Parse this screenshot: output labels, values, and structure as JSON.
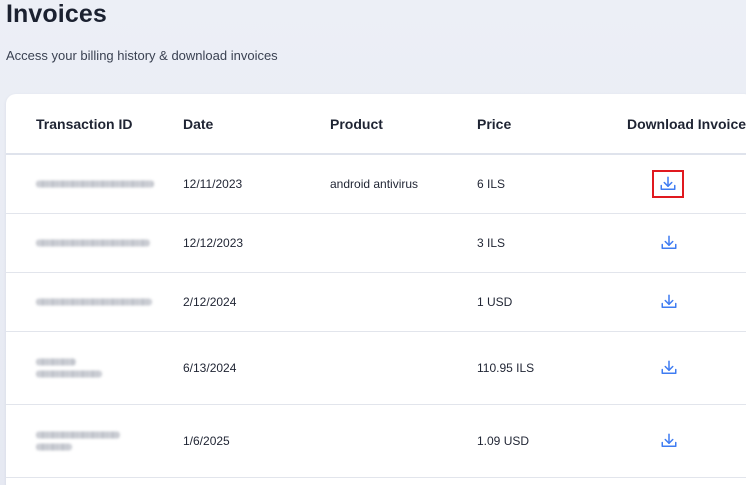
{
  "page": {
    "title": "Invoices",
    "subtitle": "Access your billing history & download invoices"
  },
  "table": {
    "headers": {
      "transaction_id": "Transaction ID",
      "date": "Date",
      "product": "Product",
      "price": "Price",
      "download": "Download Invoice"
    },
    "rows": [
      {
        "transaction_id_redacted": true,
        "date": "12/11/2023",
        "product": "android antivirus",
        "price": "6 ILS",
        "download_icon": "download-icon",
        "highlighted": true
      },
      {
        "transaction_id_redacted": true,
        "date": "12/12/2023",
        "product": "",
        "price": "3 ILS",
        "download_icon": "download-icon",
        "highlighted": false
      },
      {
        "transaction_id_redacted": true,
        "date": "2/12/2024",
        "product": "",
        "price": "1 USD",
        "download_icon": "download-icon",
        "highlighted": false
      },
      {
        "transaction_id_redacted": true,
        "date": "6/13/2024",
        "product": "",
        "price": "110.95 ILS",
        "download_icon": "download-icon",
        "highlighted": false
      },
      {
        "transaction_id_redacted": true,
        "date": "1/6/2025",
        "product": "",
        "price": "1.09 USD",
        "download_icon": "download-icon",
        "highlighted": false
      }
    ]
  },
  "colors": {
    "accent": "#3f7cf2",
    "highlight_border": "#e0191f",
    "text": "#1f2433"
  }
}
